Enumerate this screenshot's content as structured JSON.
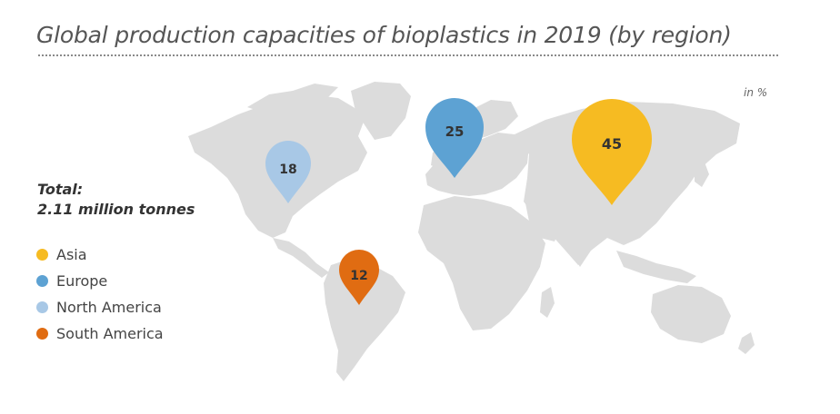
{
  "title": "Global production capacities of bioplastics in 2019 (by region)",
  "unit_label": "in %",
  "total": {
    "label": "Total:",
    "value": "2.11 million tonnes"
  },
  "legend": [
    {
      "label": "Asia",
      "color": "#f6bb22"
    },
    {
      "label": "Europe",
      "color": "#5da2d3"
    },
    {
      "label": "North America",
      "color": "#a8c8e6"
    },
    {
      "label": "South America",
      "color": "#e06c12"
    }
  ],
  "regions": [
    {
      "name": "Asia",
      "value": 45,
      "label": "45",
      "color": "#f6bb22"
    },
    {
      "name": "Europe",
      "value": 25,
      "label": "25",
      "color": "#5da2d3"
    },
    {
      "name": "North America",
      "value": 18,
      "label": "18",
      "color": "#a8c8e6"
    },
    {
      "name": "South America",
      "value": 12,
      "label": "12",
      "color": "#e06c12"
    }
  ],
  "colors": {
    "land": "#dcdcdc",
    "title": "#555555"
  }
}
